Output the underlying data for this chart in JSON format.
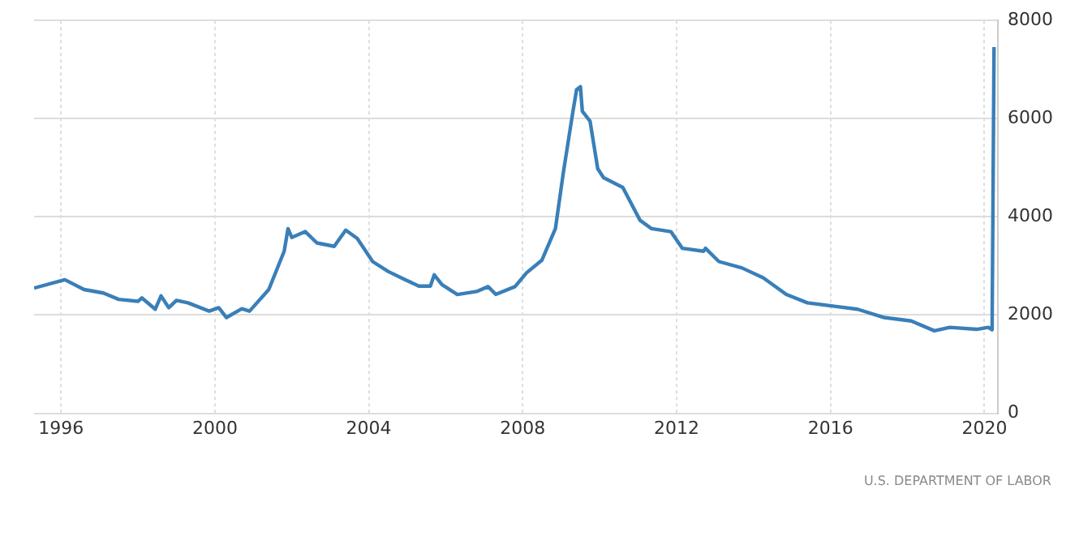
{
  "chart_data": {
    "type": "line",
    "x": [
      1995.3,
      1996.1,
      1996.6,
      1997.1,
      1997.5,
      1998.0,
      1998.1,
      1998.45,
      1998.6,
      1998.8,
      1999.0,
      1999.3,
      1999.85,
      2000.1,
      2000.3,
      2000.7,
      2000.9,
      2001.4,
      2001.8,
      2001.9,
      2002.0,
      2002.35,
      2002.65,
      2003.1,
      2003.4,
      2003.7,
      2004.1,
      2004.5,
      2004.95,
      2005.3,
      2005.6,
      2005.7,
      2005.9,
      2006.3,
      2006.8,
      2007.1,
      2007.3,
      2007.8,
      2008.1,
      2008.5,
      2008.85,
      2009.05,
      2009.3,
      2009.4,
      2009.5,
      2009.55,
      2009.75,
      2009.95,
      2010.1,
      2010.6,
      2011.05,
      2011.35,
      2011.85,
      2012.15,
      2012.7,
      2012.75,
      2013.1,
      2013.7,
      2014.25,
      2014.85,
      2015.4,
      2016.1,
      2016.7,
      2017.4,
      2018.1,
      2018.7,
      2019.1,
      2019.8,
      2020.1,
      2020.2,
      2020.25
    ],
    "series": [
      {
        "color": "#3a7fb8",
        "values": [
          2550,
          2720,
          2520,
          2450,
          2320,
          2280,
          2350,
          2120,
          2390,
          2150,
          2300,
          2250,
          2080,
          2150,
          1950,
          2130,
          2080,
          2520,
          3300,
          3760,
          3580,
          3700,
          3470,
          3400,
          3730,
          3560,
          3090,
          2890,
          2720,
          2590,
          2590,
          2820,
          2620,
          2420,
          2480,
          2580,
          2420,
          2580,
          2860,
          3120,
          3760,
          4870,
          6120,
          6590,
          6650,
          6150,
          5950,
          4980,
          4800,
          4600,
          3930,
          3760,
          3700,
          3360,
          3300,
          3360,
          3090,
          2960,
          2760,
          2420,
          2250,
          2180,
          2120,
          1950,
          1880,
          1680,
          1750,
          1710,
          1750,
          1700,
          7460
        ]
      }
    ],
    "xlim": [
      1995.3,
      2020.35
    ],
    "xticks": [
      1996,
      2000,
      2004,
      2008,
      2012,
      2016,
      2020
    ],
    "ylim": [
      0,
      8000
    ],
    "yticks": [
      0,
      2000,
      4000,
      6000,
      8000
    ],
    "grid": true,
    "marker": "none",
    "line_style": "solid",
    "annotations": [
      "U.S. DEPARTMENT OF LABOR"
    ]
  }
}
